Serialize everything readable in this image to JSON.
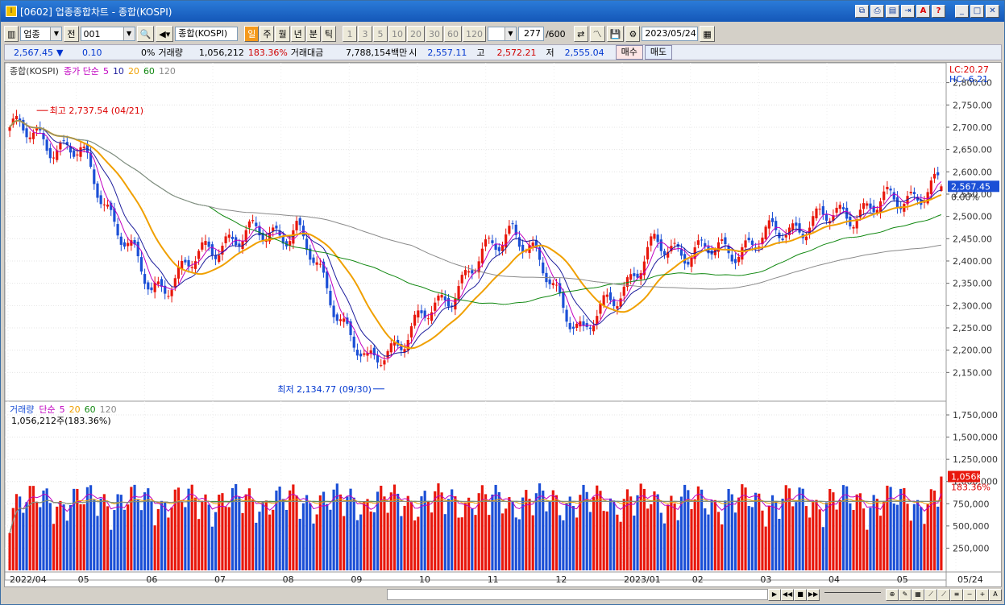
{
  "window": {
    "title": "[0602] 업종종합차트 - 종합(KOSPI)"
  },
  "toolbar": {
    "market_select": "업종",
    "market_button": "전",
    "code_value": "001",
    "name_value": "종합(KOSPI)",
    "periods": [
      "일",
      "주",
      "월",
      "년",
      "분",
      "틱"
    ],
    "active_period": "일",
    "minute_options": [
      "1",
      "3",
      "5",
      "10",
      "20",
      "30",
      "60",
      "120"
    ],
    "count_value": "277",
    "count_total": "/600",
    "date_value": "2023/05/24"
  },
  "info": {
    "price": "2,567.45",
    "change_icon": "down-triangle",
    "change": "0.10",
    "change_pct": "0%",
    "volume_label": "거래량",
    "volume": "1,056,212",
    "volume_pct": "183.36%",
    "amount_label": "거래대금",
    "amount": "7,788,154백만",
    "open_label": "시",
    "open": "2,557.11",
    "high_label": "고",
    "high": "2,572.21",
    "low_label": "저",
    "low": "2,555.04",
    "buy_label": "매수",
    "sell_label": "매도"
  },
  "price_panel": {
    "legend_name": "종합(KOSPI)",
    "legend_ma": "종가 단순",
    "ma_periods": [
      "5",
      "10",
      "20",
      "60",
      "120"
    ],
    "lc_label": "LC:20.27",
    "hc_label": "HC:-6.21",
    "current_tag": "2,567.45",
    "pct_tag": "0.00%",
    "high_marker": "최고 2,737.54 (04/21)",
    "low_marker": "최저 2,134.77 (09/30)",
    "y_ticks": [
      "2,800.00",
      "2,750.00",
      "2,700.00",
      "2,650.00",
      "2,600.00",
      "2,550.00",
      "2,500.00",
      "2,450.00",
      "2,400.00",
      "2,350.00",
      "2,300.00",
      "2,250.00",
      "2,200.00",
      "2,150.00"
    ]
  },
  "volume_panel": {
    "legend_name": "거래량",
    "legend_ma": "단순",
    "ma_periods": [
      "5",
      "20",
      "60",
      "120"
    ],
    "value_label": "1,056,212주(183.36%)",
    "current_tag": "1,056K",
    "pct_tag": "183.36%",
    "y_ticks": [
      "1,750,000",
      "1,500,000",
      "1,250,000",
      "1,000,000",
      "750,000",
      "500,000",
      "250,000"
    ]
  },
  "x_labels": [
    "2022/04",
    "05",
    "06",
    "07",
    "08",
    "09",
    "10",
    "11",
    "12",
    "2023/01",
    "02",
    "03",
    "04",
    "05",
    "05/24"
  ],
  "colors": {
    "up": "#e8170c",
    "down": "#1b4fd6",
    "ma5": "#c000c0",
    "ma10": "#1c1c9c",
    "ma20": "#f0a000",
    "ma60": "#118811",
    "ma120": "#8a8a8a"
  },
  "chart_data": {
    "type": "candlestick",
    "title": "종합(KOSPI)",
    "x_range": [
      "2022/04",
      "2023/05/24"
    ],
    "y_range": [
      2100,
      2830
    ],
    "monthly_closes": [
      {
        "x": "2022/04",
        "y": 2700
      },
      {
        "x": "2022/05",
        "y": 2640
      },
      {
        "x": "2022/06",
        "y": 2330
      },
      {
        "x": "2022/07",
        "y": 2450
      },
      {
        "x": "2022/08",
        "y": 2470
      },
      {
        "x": "2022/09",
        "y": 2160
      },
      {
        "x": "2022/10",
        "y": 2300
      },
      {
        "x": "2022/11",
        "y": 2480
      },
      {
        "x": "2022/12",
        "y": 2240
      },
      {
        "x": "2023/01",
        "y": 2430
      },
      {
        "x": "2023/02",
        "y": 2420
      },
      {
        "x": "2023/03",
        "y": 2480
      },
      {
        "x": "2023/04",
        "y": 2520
      },
      {
        "x": "2023/05/24",
        "y": 2567.45
      }
    ],
    "high": {
      "value": 2737.54,
      "date": "04/21"
    },
    "low": {
      "value": 2134.77,
      "date": "09/30"
    },
    "last": {
      "open": 2557.11,
      "high": 2572.21,
      "low": 2555.04,
      "close": 2567.45
    },
    "volume_last": 1056212,
    "volume_y_range": [
      0,
      1850000
    ]
  }
}
